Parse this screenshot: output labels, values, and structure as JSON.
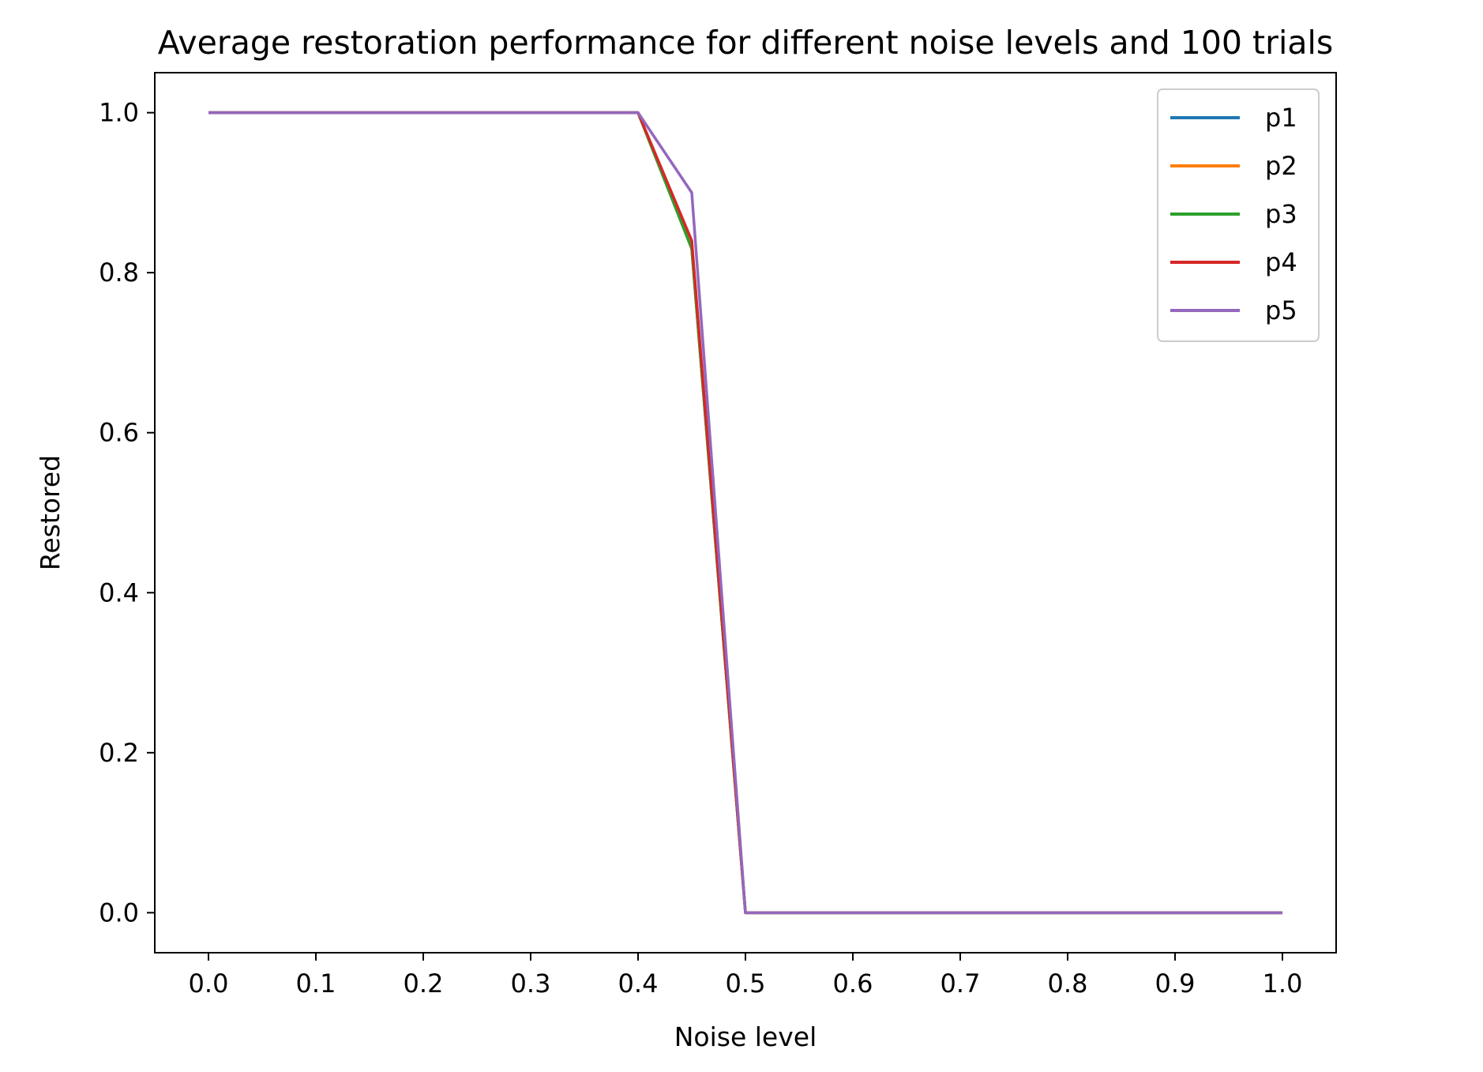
{
  "chart_data": {
    "type": "line",
    "title": "Average restoration performance for different noise levels and 100 trials",
    "xlabel": "Noise level",
    "ylabel": "Restored",
    "xlim": [
      -0.05,
      1.05
    ],
    "ylim": [
      -0.05,
      1.05
    ],
    "xticks": [
      "0.0",
      "0.1",
      "0.2",
      "0.3",
      "0.4",
      "0.5",
      "0.6",
      "0.7",
      "0.8",
      "0.9",
      "1.0"
    ],
    "yticks": [
      "0.0",
      "0.2",
      "0.4",
      "0.6",
      "0.8",
      "1.0"
    ],
    "grid": false,
    "legend_position": "top-right",
    "x": [
      0.0,
      0.05,
      0.1,
      0.15,
      0.2,
      0.25,
      0.3,
      0.35,
      0.4,
      0.45,
      0.5,
      0.55,
      0.6,
      0.65,
      0.7,
      0.75,
      0.8,
      0.85,
      0.9,
      0.95,
      1.0
    ],
    "series": [
      {
        "name": "p1",
        "color": "#1f77b4",
        "values": [
          1,
          1,
          1,
          1,
          1,
          1,
          1,
          1,
          1,
          0.83,
          0,
          0,
          0,
          0,
          0,
          0,
          0,
          0,
          0,
          0,
          0
        ]
      },
      {
        "name": "p2",
        "color": "#ff7f0e",
        "values": [
          1,
          1,
          1,
          1,
          1,
          1,
          1,
          1,
          1,
          0.83,
          0,
          0,
          0,
          0,
          0,
          0,
          0,
          0,
          0,
          0,
          0
        ]
      },
      {
        "name": "p3",
        "color": "#2ca02c",
        "values": [
          1,
          1,
          1,
          1,
          1,
          1,
          1,
          1,
          1,
          0.83,
          0,
          0,
          0,
          0,
          0,
          0,
          0,
          0,
          0,
          0,
          0
        ]
      },
      {
        "name": "p4",
        "color": "#d62728",
        "values": [
          1,
          1,
          1,
          1,
          1,
          1,
          1,
          1,
          1,
          0.84,
          0,
          0,
          0,
          0,
          0,
          0,
          0,
          0,
          0,
          0,
          0
        ]
      },
      {
        "name": "p5",
        "color": "#9467bd",
        "values": [
          1,
          1,
          1,
          1,
          1,
          1,
          1,
          1,
          1,
          0.9,
          0,
          0,
          0,
          0,
          0,
          0,
          0,
          0,
          0,
          0,
          0
        ]
      }
    ]
  }
}
